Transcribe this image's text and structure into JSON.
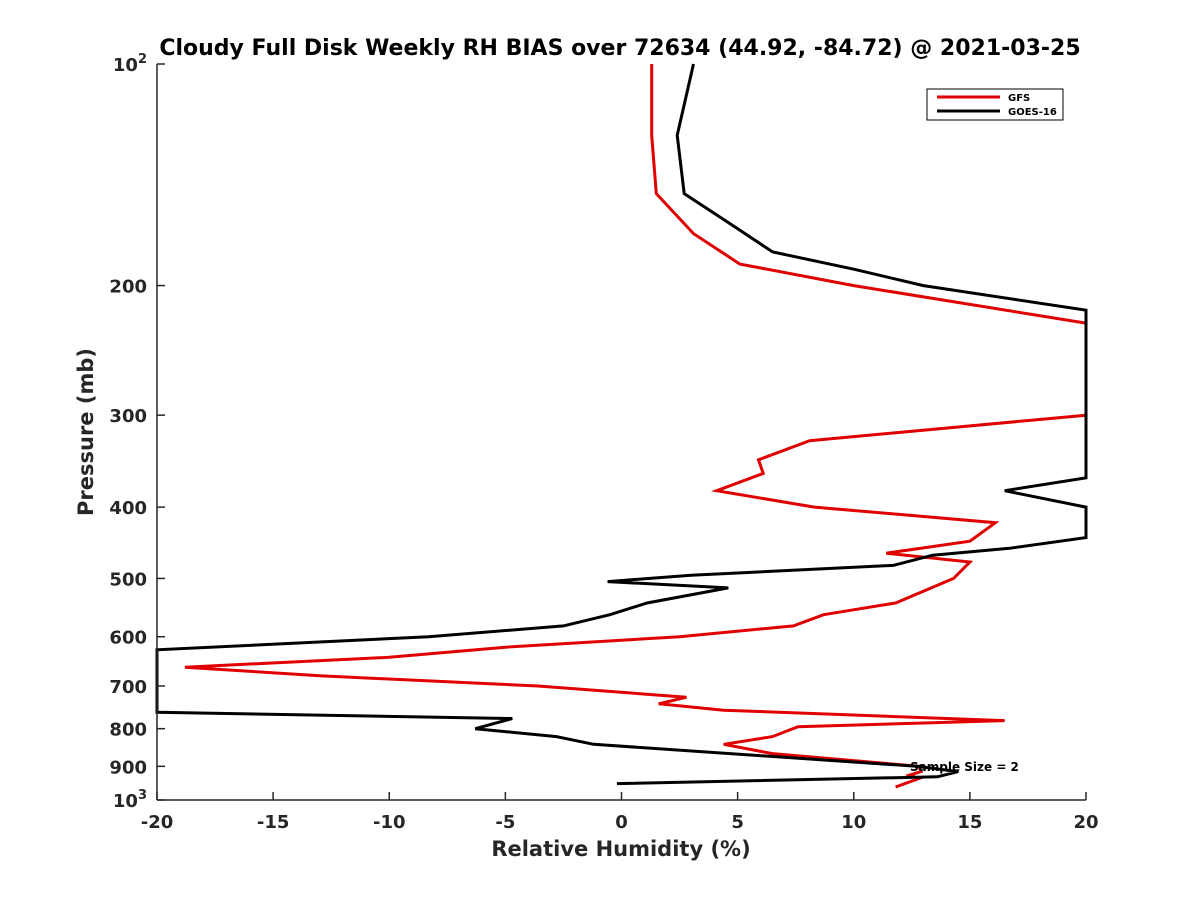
{
  "chart_data": {
    "type": "line",
    "title": "Cloudy Full Disk Weekly RH BIAS over 72634 (44.92, -84.72) @ 2021-03-25",
    "xlabel": "Relative Humidity (%)",
    "ylabel": "Pressure (mb)",
    "xlim": [
      -20,
      20
    ],
    "ylim": [
      100,
      1000
    ],
    "y_scale": "log",
    "y_reversed": true,
    "grid": false,
    "legend_position": "top-right",
    "x_ticks": [
      {
        "value": -20,
        "label": "-20"
      },
      {
        "value": -15,
        "label": "-15"
      },
      {
        "value": -10,
        "label": "-10"
      },
      {
        "value": -5,
        "label": "-5"
      },
      {
        "value": 0,
        "label": "0"
      },
      {
        "value": 5,
        "label": "5"
      },
      {
        "value": 10,
        "label": "10"
      },
      {
        "value": 15,
        "label": "15"
      },
      {
        "value": 20,
        "label": "20"
      }
    ],
    "y_ticks": [
      {
        "value": 100,
        "label": "10",
        "sup": "2"
      },
      {
        "value": 200,
        "label": "200",
        "sup": ""
      },
      {
        "value": 300,
        "label": "300",
        "sup": ""
      },
      {
        "value": 400,
        "label": "400",
        "sup": ""
      },
      {
        "value": 500,
        "label": "500",
        "sup": ""
      },
      {
        "value": 600,
        "label": "600",
        "sup": ""
      },
      {
        "value": 700,
        "label": "700",
        "sup": ""
      },
      {
        "value": 800,
        "label": "800",
        "sup": ""
      },
      {
        "value": 900,
        "label": "900",
        "sup": ""
      },
      {
        "value": 1000,
        "label": "10",
        "sup": "3"
      }
    ],
    "annotation": "Sample Size = 2",
    "series": [
      {
        "name": "GFS",
        "color": "#e00000",
        "points": [
          [
            1.3,
            100
          ],
          [
            1.3,
            125
          ],
          [
            1.5,
            150
          ],
          [
            3.1,
            170
          ],
          [
            5.1,
            187
          ],
          [
            10.0,
            200
          ],
          [
            20.0,
            225
          ],
          [
            20.0,
            300
          ],
          [
            8.1,
            325
          ],
          [
            5.9,
            345
          ],
          [
            6.1,
            360
          ],
          [
            4.1,
            380
          ],
          [
            8.3,
            400
          ],
          [
            16.1,
            420
          ],
          [
            15.0,
            445
          ],
          [
            11.4,
            462
          ],
          [
            15.0,
            475
          ],
          [
            14.3,
            500
          ],
          [
            11.8,
            540
          ],
          [
            8.7,
            560
          ],
          [
            7.4,
            580
          ],
          [
            2.5,
            600
          ],
          [
            -5.0,
            620
          ],
          [
            -10.0,
            640
          ],
          [
            -18.8,
            660
          ],
          [
            -13.0,
            678
          ],
          [
            -3.6,
            700
          ],
          [
            2.8,
            725
          ],
          [
            1.6,
            740
          ],
          [
            4.4,
            755
          ],
          [
            16.5,
            780
          ],
          [
            7.6,
            795
          ],
          [
            6.5,
            820
          ],
          [
            4.4,
            840
          ],
          [
            6.5,
            865
          ],
          [
            12.8,
            900
          ],
          [
            12.9,
            915
          ],
          [
            12.4,
            925
          ],
          [
            12.8,
            935
          ],
          [
            11.8,
            960
          ]
        ]
      },
      {
        "name": "GOES-16",
        "color": "#000000",
        "points": [
          [
            3.1,
            100
          ],
          [
            2.4,
            125
          ],
          [
            2.7,
            150
          ],
          [
            4.7,
            165
          ],
          [
            6.5,
            180
          ],
          [
            10.0,
            190
          ],
          [
            13.0,
            200
          ],
          [
            20.0,
            216
          ],
          [
            20.0,
            365
          ],
          [
            16.5,
            380
          ],
          [
            20.0,
            400
          ],
          [
            20.0,
            440
          ],
          [
            16.7,
            455
          ],
          [
            13.4,
            465
          ],
          [
            11.7,
            480
          ],
          [
            3.0,
            495
          ],
          [
            -0.6,
            505
          ],
          [
            4.6,
            515
          ],
          [
            1.1,
            540
          ],
          [
            -0.5,
            560
          ],
          [
            -2.5,
            580
          ],
          [
            -8.3,
            600
          ],
          [
            -20.0,
            625
          ],
          [
            -20.0,
            760
          ],
          [
            -4.7,
            775
          ],
          [
            -6.3,
            800
          ],
          [
            -2.8,
            820
          ],
          [
            -1.2,
            840
          ],
          [
            12.7,
            900
          ],
          [
            14.5,
            915
          ],
          [
            13.6,
            930
          ],
          [
            -0.2,
            950
          ]
        ]
      }
    ]
  }
}
